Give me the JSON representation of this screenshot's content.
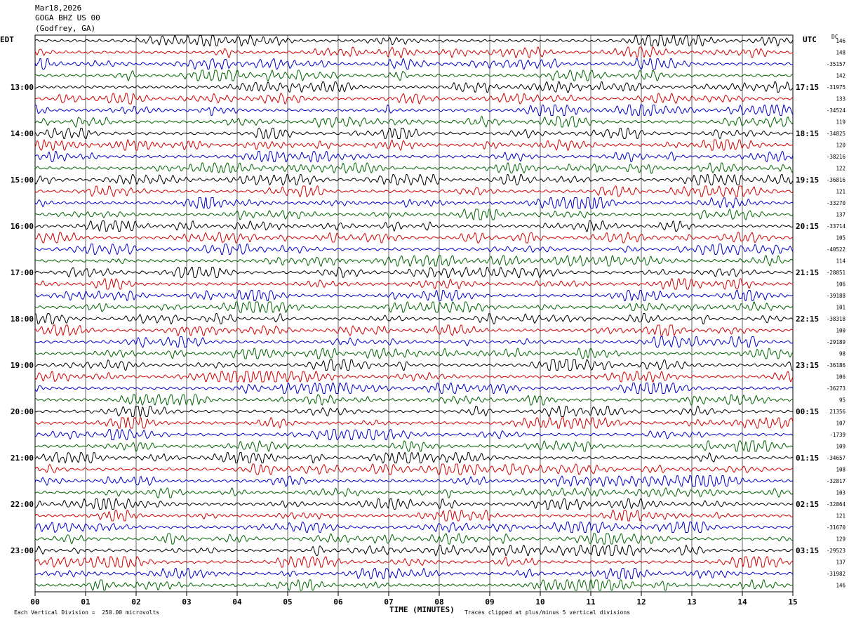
{
  "header": {
    "date": "Mar18,2026",
    "station": "GOGA BHZ US 00",
    "location": "(Godfrey, GA)"
  },
  "chart_data": {
    "type": "line",
    "title": "GOGA BHZ US 00 (Godfrey, GA)",
    "xlabel": "TIME (MINUTES)",
    "xlim": [
      0,
      15
    ],
    "x_ticks": [
      "00",
      "01",
      "02",
      "03",
      "04",
      "05",
      "06",
      "07",
      "08",
      "09",
      "10",
      "11",
      "12",
      "13",
      "14",
      "15"
    ],
    "left_timezone": "EDT",
    "right_timezone": "UTC",
    "dc_label": "DC",
    "left_hour_labels": [
      "13:00",
      "14:00",
      "15:00",
      "16:00",
      "17:00",
      "18:00",
      "19:00",
      "20:00",
      "21:00",
      "22:00",
      "23:00"
    ],
    "right_hour_labels": [
      "17:15",
      "18:15",
      "19:15",
      "20:15",
      "21:15",
      "22:15",
      "23:15",
      "00:15",
      "01:15",
      "02:15",
      "03:15"
    ],
    "trace_colors": [
      "#000000",
      "#d40000",
      "#0000cc",
      "#006400"
    ],
    "trace_count": 48,
    "dc_offsets": [
      "146",
      "148",
      "-35157",
      "142",
      "-31975",
      "133",
      "-34524",
      "119",
      "-34825",
      "120",
      "-38216",
      "122",
      "-36816",
      "121",
      "-33270",
      "137",
      "-33714",
      "105",
      "-40522",
      "114",
      "-28851",
      "106",
      "-39188",
      "101",
      "-38318",
      "100",
      "-29189",
      "98",
      "-36186",
      "106",
      "-36273",
      "95",
      "21356",
      "107",
      "-1739",
      "109",
      "-34657",
      "108",
      "-32817",
      "103",
      "-32864",
      "121",
      "-31670",
      "129",
      "-29523",
      "137",
      "-31982",
      "146"
    ]
  },
  "footer": {
    "scale_note": "Each Vertical Division =  250.00 microvolts",
    "clip_note": "Traces clipped at plus/minus 5 vertical divisions"
  }
}
